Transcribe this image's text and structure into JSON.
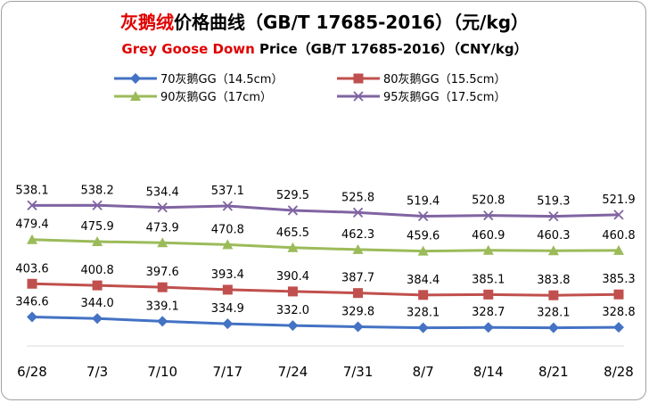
{
  "title": {
    "cn_red": "灰鹅绒",
    "cn_rest": "价格曲线（GB/T 17685-2016）（元/kg）",
    "en_red": "Grey Goose Down",
    "en_rest": " Price（GB/T 17685-2016）（CNY/kg）"
  },
  "chart_data": {
    "type": "line",
    "categories": [
      "6/28",
      "7/3",
      "7/10",
      "7/17",
      "7/24",
      "7/31",
      "8/7",
      "8/14",
      "8/21",
      "8/28"
    ],
    "series": [
      {
        "name": "70灰鹅GG（14.5cm）",
        "color": "#4472c4",
        "marker": "diamond",
        "values": [
          346.6,
          344.0,
          339.1,
          334.9,
          332.0,
          329.8,
          328.1,
          328.7,
          328.1,
          328.8
        ]
      },
      {
        "name": "80灰鹅GG（15.5cm）",
        "color": "#c0504d",
        "marker": "square",
        "values": [
          403.6,
          400.8,
          397.6,
          393.4,
          390.4,
          387.7,
          384.4,
          385.1,
          383.8,
          385.3
        ]
      },
      {
        "name": "90灰鹅GG（17cm）",
        "color": "#9bbb59",
        "marker": "triangle",
        "values": [
          479.4,
          475.9,
          473.9,
          470.8,
          465.5,
          462.3,
          459.6,
          460.9,
          460.3,
          460.8
        ]
      },
      {
        "name": "95灰鹅GG（17.5cm）",
        "color": "#8064a2",
        "marker": "x",
        "values": [
          538.1,
          538.2,
          534.4,
          537.1,
          529.5,
          525.8,
          519.4,
          520.8,
          519.3,
          521.9
        ]
      }
    ],
    "legend_position": "top",
    "grid": false,
    "title_color": "#e00000"
  }
}
